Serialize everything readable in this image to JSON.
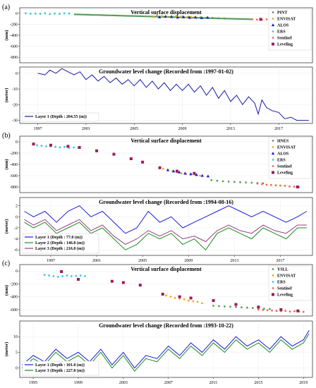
{
  "chart_data": [
    {
      "type": "scatter",
      "panel": "(a)",
      "title": "Vertical surface displacement",
      "ylabel": "(mm)",
      "xlim": [
        1995.5,
        2019.8
      ],
      "ylim": [
        -900,
        100
      ],
      "yticks": [
        0,
        -200,
        -400,
        -600,
        -800
      ],
      "series": [
        {
          "name": "PINT",
          "color": "#5a9e5a",
          "marker": "dot",
          "x": [
            2008.5,
            2009.0,
            2009.5,
            2010.0,
            2010.5,
            2011.0,
            2011.5,
            2012.0,
            2012.5
          ],
          "y": [
            -55,
            -60,
            -65,
            -70,
            -75,
            -80,
            -85,
            -90,
            -95
          ]
        },
        {
          "name": "ENVISAT",
          "color": "#f5a623",
          "marker": "dot",
          "x": [
            2006.6,
            2006.9,
            2007.3,
            2007.7,
            2008.1,
            2008.5,
            2008.9,
            2009.3,
            2009.7,
            2010.0
          ],
          "y": [
            -70,
            -30,
            -50,
            -60,
            -55,
            -70,
            -60,
            -75,
            -65,
            -70
          ]
        },
        {
          "name": "ALOS",
          "color": "#1a1adc",
          "marker": "triangle",
          "x": [
            2007.1,
            2007.6,
            2008.1,
            2008.6,
            2009.1,
            2009.6,
            2010.1,
            2010.6,
            2011.1
          ],
          "y": [
            -70,
            -60,
            -65,
            -75,
            -70,
            -80,
            -75,
            -85,
            -80
          ]
        },
        {
          "name": "ERS",
          "color": "#3cc8e0",
          "marker": "dot",
          "x": [
            1996.0,
            1996.4,
            1996.8,
            1997.2,
            1997.6,
            1998.0,
            1998.4,
            1998.8,
            1999.2,
            1999.6
          ],
          "y": [
            0,
            -8,
            -5,
            -10,
            0,
            -15,
            -5,
            -10,
            0,
            -5
          ]
        },
        {
          "name": "Sentinel",
          "color": "#f26b4a",
          "marker": "dot",
          "x": [
            2014.8,
            2015.2,
            2015.6,
            2016.0,
            2016.4,
            2016.8,
            2017.2,
            2017.6,
            2018.0,
            2018.4,
            2018.8,
            2019.2
          ],
          "y": [
            -110,
            -115,
            -120,
            -110,
            -125,
            -120,
            -115,
            -130,
            -120,
            -125,
            -120,
            -130
          ]
        },
        {
          "name": "Leveling",
          "color": "#a0185c",
          "marker": "square",
          "x": [
            2015.5,
            2016.5
          ],
          "y": [
            -110,
            -120
          ]
        }
      ],
      "green_trend": {
        "x": [
          2000.0,
          2014.8
        ],
        "y": [
          -20,
          -110
        ]
      },
      "legend_position": "top-right"
    },
    {
      "type": "line",
      "panel": "(a)",
      "title": "Groundwater level change (Recorded from :1997-01-02)",
      "ylabel": "(meter)",
      "xlim": [
        1995.5,
        2019.8
      ],
      "ylim": [
        -32,
        4
      ],
      "yticks": [
        0,
        -10,
        -20,
        -30
      ],
      "xticks": [
        "1997",
        "2001",
        "2005",
        "2009",
        "2013",
        "2017"
      ],
      "xtick_values": [
        1997,
        2001,
        2005,
        2009,
        2013,
        2017
      ],
      "series": [
        {
          "name": "Layer 1 (Depth : 204.55 (m))",
          "color": "#1a1aa8",
          "x": [
            1997.0,
            1997.6,
            1998.0,
            1998.5,
            1999.0,
            1999.5,
            2000.0,
            2000.5,
            2001.0,
            2001.5,
            2002.0,
            2002.5,
            2003.0,
            2003.5,
            2004.0,
            2004.5,
            2005.0,
            2005.5,
            2006.0,
            2006.5,
            2007.0,
            2007.5,
            2008.0,
            2008.5,
            2009.0,
            2009.5,
            2010.0,
            2010.5,
            2011.0,
            2011.5,
            2012.0,
            2012.5,
            2013.0,
            2013.5,
            2014.0,
            2014.5,
            2015.0,
            2015.3,
            2015.6,
            2016.0,
            2016.5,
            2017.0,
            2017.5,
            2018.0,
            2018.5,
            2019.0,
            2019.5
          ],
          "y": [
            0,
            -1,
            2,
            0,
            3,
            1,
            -1,
            1,
            -4,
            -1,
            -5,
            -2,
            -6,
            -3,
            -7,
            -4,
            -8,
            -4,
            -9,
            -5,
            -10,
            -6,
            -11,
            -7,
            -11,
            -7,
            -12,
            -8,
            -14,
            -9,
            -16,
            -11,
            -18,
            -14,
            -20,
            -15,
            -19,
            -26,
            -17,
            -22,
            -24,
            -25,
            -29,
            -28,
            -30,
            -30,
            -30
          ]
        }
      ],
      "legend_position": "bottom-left"
    },
    {
      "type": "scatter",
      "panel": "(b)",
      "title": "Vertical surface displacement",
      "ylabel": "(mm)",
      "xlim": [
        1994.3,
        2019.8
      ],
      "ylim": [
        -900,
        100
      ],
      "yticks": [
        0,
        -200,
        -400,
        -600,
        -800
      ],
      "series": [
        {
          "name": "HNES",
          "color": "#5a9e5a",
          "marker": "dot",
          "x": [
            2011.0,
            2011.5,
            2012.0,
            2012.5,
            2013.0,
            2013.5,
            2014.0,
            2014.5,
            2015.0,
            2015.5
          ],
          "y": [
            -680,
            -690,
            -700,
            -705,
            -710,
            -715,
            -720,
            -725,
            -730,
            -735
          ]
        },
        {
          "name": "ENVISAT",
          "color": "#f5a623",
          "marker": "dot",
          "x": [
            2006.8,
            2007.2,
            2007.6,
            2008.0,
            2008.4,
            2008.8,
            2009.2,
            2009.6,
            2010.0
          ],
          "y": [
            -480,
            -500,
            -520,
            -540,
            -560,
            -570,
            -580,
            -590,
            -600
          ]
        },
        {
          "name": "ALOS",
          "color": "#1a1adc",
          "marker": "triangle",
          "x": [
            2007.2,
            2007.7,
            2008.2,
            2008.7,
            2009.2,
            2009.7,
            2010.2,
            2010.7
          ],
          "y": [
            -500,
            -520,
            -540,
            -560,
            -570,
            -585,
            -600,
            -610
          ]
        },
        {
          "name": "ERS",
          "color": "#3cc8e0",
          "marker": "dot",
          "x": [
            1995.8,
            1996.2,
            1996.6,
            1997.0,
            1997.4,
            1997.8,
            1998.2,
            1998.6,
            1999.0,
            1999.4
          ],
          "y": [
            -60,
            -70,
            -80,
            -80,
            -90,
            -100,
            -90,
            -110,
            -100,
            -110
          ]
        },
        {
          "name": "Sentinel",
          "color": "#f26b4a",
          "marker": "dot",
          "x": [
            2015.0,
            2015.4,
            2015.8,
            2016.2,
            2016.6,
            2017.0,
            2017.4,
            2017.8,
            2018.2,
            2018.6
          ],
          "y": [
            -740,
            -750,
            -760,
            -765,
            -770,
            -775,
            -780,
            -790,
            -795,
            -805
          ]
        },
        {
          "name": "Leveling",
          "color": "#a0185c",
          "marker": "square",
          "x": [
            1995.5,
            1997.0,
            1998.5,
            1999.5,
            2001.0,
            2002.5,
            2004.0,
            2005.0,
            2006.5,
            2008.0,
            2009.5,
            2018.5
          ],
          "y": [
            -40,
            -60,
            -80,
            -100,
            -160,
            -220,
            -300,
            -360,
            -460,
            -520,
            -560,
            -800
          ]
        }
      ],
      "legend_position": "top-right"
    },
    {
      "type": "line",
      "panel": "(b)",
      "title": "Groundwater level change (Recorded from :1994-08-16)",
      "ylabel": "(meter)",
      "xlim": [
        1994.3,
        2019.8
      ],
      "ylim": [
        -7,
        3.5
      ],
      "yticks": [
        2,
        0,
        -2,
        -4,
        -6
      ],
      "xticks": [
        "1997",
        "2001",
        "2005",
        "2009",
        "2013",
        "2017"
      ],
      "xtick_values": [
        1997,
        2001,
        2005,
        2009,
        2013,
        2017
      ],
      "series": [
        {
          "name": "Layer 1 (Depth : 77.0 (m))",
          "color": "#1a1adc",
          "x": [
            1994.7,
            1995.5,
            1996.5,
            1997.5,
            1998.5,
            1999.5,
            2000.5,
            2001.5,
            2002.5,
            2003.5,
            2004.5,
            2005.5,
            2006.5,
            2007.5,
            2008.5,
            2009.5,
            2010.5,
            2011.5,
            2012.5,
            2013.5,
            2014.5,
            2015.5,
            2016.5,
            2017.5,
            2018.5,
            2019.3
          ],
          "y": [
            1,
            0,
            1,
            -1,
            1,
            2,
            0,
            1,
            -1,
            -3,
            -2,
            1,
            -1,
            0,
            -2,
            -1,
            0,
            1,
            2,
            1,
            0,
            1,
            0,
            -1,
            0,
            1
          ]
        },
        {
          "name": "Layer 2 (Depth : 146.0 (m))",
          "color": "#1a8c1a",
          "x": [
            1994.7,
            1995.5,
            1996.5,
            1997.5,
            1998.5,
            1999.5,
            2000.5,
            2001.5,
            2002.5,
            2003.5,
            2004.5,
            2005.5,
            2006.5,
            2007.5,
            2008.5,
            2009.5,
            2010.5,
            2011.5,
            2012.5,
            2013.5,
            2014.5,
            2015.5,
            2016.5,
            2017.5,
            2018.5,
            2019.3
          ],
          "y": [
            -1,
            -2,
            -1,
            -3,
            -2,
            -1,
            -3,
            -2,
            -4,
            -6,
            -5,
            -3,
            -4,
            -3,
            -5,
            -4,
            -6,
            -3,
            -2,
            -3,
            -4,
            -2,
            -3,
            -4,
            -2,
            -2
          ]
        },
        {
          "name": "Layer 3 (Depth : 216.0 (m))",
          "color": "#9a3b8a",
          "x": [
            1994.7,
            1995.5,
            1996.5,
            1997.5,
            1998.5,
            1999.5,
            2000.5,
            2001.5,
            2002.5,
            2003.5,
            2004.5,
            2005.5,
            2006.5,
            2007.5,
            2008.5,
            2009.5,
            2010.5,
            2011.5,
            2012.5,
            2013.5,
            2014.5,
            2015.5,
            2016.5,
            2017.5,
            2018.5,
            2019.3
          ],
          "y": [
            -0.5,
            -1.5,
            -0.5,
            -2.5,
            -1.5,
            -0.5,
            -2.5,
            -1.5,
            -3.5,
            -5,
            -4,
            -2.5,
            -3.5,
            -2.5,
            -4,
            -3.5,
            -4.5,
            -2.5,
            -1.5,
            -2.5,
            -3,
            -1.5,
            -2.5,
            -3,
            -1.5,
            -1.5
          ]
        }
      ],
      "legend_position": "bottom-left"
    },
    {
      "type": "scatter",
      "panel": "(c)",
      "title": "Vertical surface displacement",
      "ylabel": "(mm)",
      "xlim": [
        1993.8,
        2019.8
      ],
      "ylim": [
        -700,
        100
      ],
      "yticks": [
        0,
        -200,
        -400,
        -600
      ],
      "series": [
        {
          "name": "YSLL",
          "color": "#5a9e5a",
          "marker": "dot",
          "x": [
            2011.0,
            2011.5,
            2012.0,
            2012.5,
            2013.0,
            2013.5,
            2014.0,
            2014.5,
            2015.0,
            2015.5,
            2016.0
          ],
          "y": [
            -540,
            -545,
            -550,
            -555,
            -560,
            -565,
            -570,
            -575,
            -580,
            -585,
            -590
          ]
        },
        {
          "name": "ENVISAT",
          "color": "#f5a623",
          "marker": "dot",
          "x": [
            2006.8,
            2007.2,
            2007.6,
            2008.0,
            2008.4,
            2008.8,
            2009.2,
            2009.6,
            2010.0
          ],
          "y": [
            -380,
            -400,
            -420,
            -430,
            -440,
            -460,
            -470,
            -480,
            -500
          ]
        },
        {
          "name": "ERS",
          "color": "#3cc8e0",
          "marker": "dot",
          "x": [
            1996.0,
            1996.4,
            1996.8,
            1997.2,
            1997.6,
            1998.0,
            1998.4,
            1998.8,
            1999.2,
            1999.6
          ],
          "y": [
            -60,
            -70,
            -80,
            -90,
            -80,
            -70,
            -80,
            -75,
            -70,
            -80
          ]
        },
        {
          "name": "Sentinel",
          "color": "#f26b4a",
          "marker": "dot",
          "x": [
            2015.0,
            2015.4,
            2015.8,
            2016.2,
            2016.6,
            2017.0,
            2017.4,
            2017.8,
            2018.2,
            2018.6,
            2019.0
          ],
          "y": [
            -600,
            -605,
            -610,
            -615,
            -620,
            -625,
            -620,
            -630,
            -625,
            -630,
            -635
          ]
        },
        {
          "name": "Leveling",
          "color": "#a0185c",
          "marker": "square",
          "x": [
            1997.5,
            1999.0,
            2002.0,
            2003.0,
            2004.5,
            2006.5,
            2008.0,
            2009.0,
            2011.0,
            2013.0,
            2015.0,
            2017.0,
            2018.5
          ],
          "y": [
            -10,
            -130,
            -160,
            -180,
            -220,
            -360,
            -400,
            -420,
            -460,
            -520,
            -560,
            -600,
            -620
          ]
        }
      ],
      "legend_position": "top-right"
    },
    {
      "type": "line",
      "panel": "(c)",
      "title": "Groundwater level change (Recorded from :1993-10-22)",
      "ylabel": "(meter)",
      "xlim": [
        1993.8,
        2019.8
      ],
      "ylim": [
        -3,
        15
      ],
      "yticks": [
        10,
        5,
        0
      ],
      "xticks": [
        "1995",
        "1999",
        "2003",
        "2007",
        "2011",
        "2015",
        "2019"
      ],
      "xtick_values": [
        1995,
        1999,
        2003,
        2007,
        2011,
        2015,
        2019
      ],
      "series": [
        {
          "name": "Layer 1 (Depth : 101.0 (m))",
          "color": "#1a1adc",
          "x": [
            1994.0,
            1995.0,
            1996.0,
            1997.0,
            1998.0,
            1999.0,
            2000.0,
            2001.0,
            2002.0,
            2003.0,
            2004.0,
            2005.0,
            2006.0,
            2007.0,
            2008.0,
            2009.0,
            2010.0,
            2011.0,
            2012.0,
            2013.0,
            2014.0,
            2015.0,
            2016.0,
            2017.0,
            2018.0,
            2019.0,
            2019.5
          ],
          "y": [
            1,
            4,
            2,
            6,
            3,
            5,
            2,
            6,
            1,
            5,
            0,
            4,
            3,
            7,
            4,
            8,
            5,
            9,
            6,
            10,
            7,
            9,
            6,
            10,
            7,
            9,
            12
          ]
        },
        {
          "name": "Layer 3 (Depth : 227.0 (m))",
          "color": "#1a8c1a",
          "x": [
            1994.0,
            1995.0,
            1996.0,
            1997.0,
            1998.0,
            1999.0,
            2000.0,
            2001.0,
            2002.0,
            2003.0,
            2004.0,
            2005.0,
            2006.0,
            2007.0,
            2008.0,
            2009.0,
            2010.0,
            2011.0,
            2012.0,
            2013.0,
            2014.0,
            2015.0,
            2016.0,
            2017.0,
            2018.0,
            2019.0,
            2019.5
          ],
          "y": [
            0,
            3,
            1,
            5,
            2,
            4,
            1,
            5,
            0,
            4,
            -1,
            3,
            2,
            6,
            3,
            7,
            4,
            8,
            5,
            9,
            6,
            8,
            5,
            9,
            6,
            8,
            11
          ]
        }
      ],
      "legend_position": "bottom-left"
    }
  ],
  "panel_labels": [
    "(a)",
    "(b)",
    "(c)"
  ]
}
